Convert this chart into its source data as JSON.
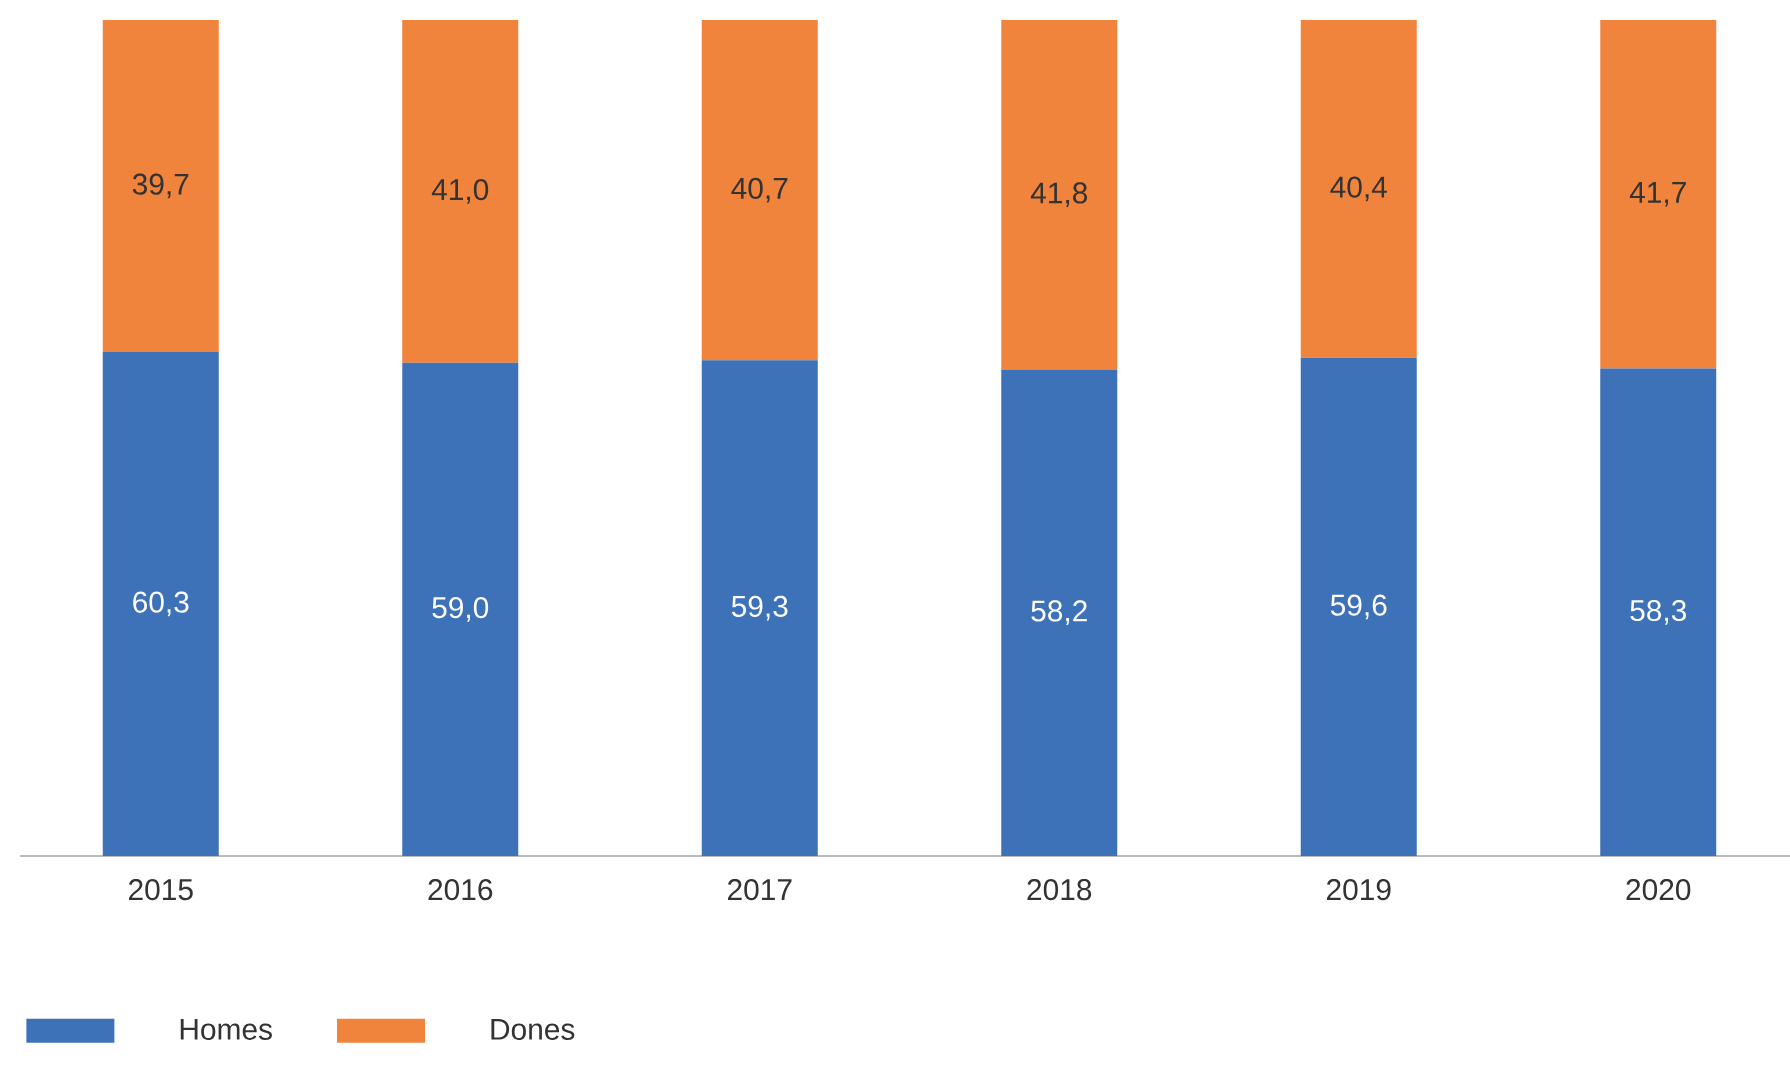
{
  "chart_data": {
    "type": "bar",
    "stacked": true,
    "categories": [
      "2015",
      "2016",
      "2017",
      "2018",
      "2019",
      "2020"
    ],
    "series": [
      {
        "name": "Homes",
        "color": "#3d71b8",
        "values": [
          60.3,
          59.0,
          59.3,
          58.2,
          59.6,
          58.3
        ],
        "value_labels": [
          "60,3",
          "59,0",
          "59,3",
          "58,2",
          "59,6",
          "58,3"
        ]
      },
      {
        "name": "Dones",
        "color": "#f0843c",
        "values": [
          39.7,
          41.0,
          40.7,
          41.8,
          40.4,
          41.7
        ],
        "value_labels": [
          "39,7",
          "41,0",
          "40,7",
          "41,8",
          "40,4",
          "41,7"
        ]
      }
    ],
    "legend": "bottom left"
  }
}
